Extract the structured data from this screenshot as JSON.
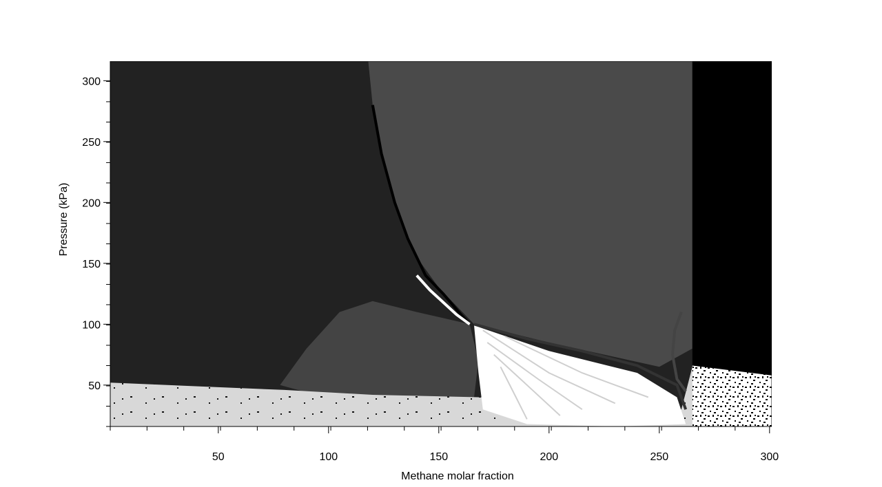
{
  "chart_data": {
    "type": "heatmap",
    "title": "",
    "xlabel": "Methane molar fraction",
    "ylabel": "Pressure (kPa)",
    "xlim": [
      1,
      301
    ],
    "ylim": [
      16,
      316
    ],
    "x_ticks": [
      50,
      100,
      150,
      200,
      250,
      300
    ],
    "y_ticks": [
      50,
      100,
      150,
      200,
      250,
      300
    ],
    "x_minor_step": 16.67,
    "y_minor_step": 16.67,
    "grid": false,
    "legend": "none",
    "palette": {
      "darkest": "#000000",
      "very_dark": "#222222",
      "mid_dark": "#3d3d3d",
      "mid": "#4a4a4a",
      "light": "#d8d8d8",
      "white": "#ffffff"
    },
    "regions": [
      {
        "name": "left-dark-region",
        "color": "#222222",
        "polygon": [
          [
            1,
            316
          ],
          [
            118,
            316
          ],
          [
            120,
            280
          ],
          [
            124,
            240
          ],
          [
            130,
            200
          ],
          [
            138,
            160
          ],
          [
            150,
            130
          ],
          [
            164,
            100
          ],
          [
            140,
            110
          ],
          [
            120,
            119
          ],
          [
            105,
            110
          ],
          [
            90,
            80
          ],
          [
            78,
            50
          ],
          [
            1,
            50
          ]
        ]
      },
      {
        "name": "upper-mid-region",
        "color": "#4a4a4a",
        "polygon": [
          [
            118,
            316
          ],
          [
            265,
            316
          ],
          [
            265,
            80
          ],
          [
            250,
            65
          ],
          [
            200,
            85
          ],
          [
            166,
            100
          ],
          [
            150,
            130
          ],
          [
            138,
            160
          ],
          [
            130,
            200
          ],
          [
            124,
            240
          ],
          [
            120,
            280
          ]
        ]
      },
      {
        "name": "lower-mid-dome",
        "color": "#444444",
        "polygon": [
          [
            78,
            50
          ],
          [
            90,
            80
          ],
          [
            105,
            110
          ],
          [
            120,
            119
          ],
          [
            140,
            110
          ],
          [
            164,
            100
          ],
          [
            168,
            70
          ],
          [
            166,
            40
          ],
          [
            120,
            40
          ],
          [
            90,
            44
          ]
        ]
      },
      {
        "name": "right-black-region",
        "color": "#000000",
        "polygon": [
          [
            265,
            316
          ],
          [
            301,
            316
          ],
          [
            301,
            57
          ],
          [
            265,
            65
          ]
        ]
      },
      {
        "name": "bottom-light-band",
        "color": "#d8d8d8",
        "polygon": [
          [
            1,
            16
          ],
          [
            301,
            16
          ],
          [
            301,
            57
          ],
          [
            265,
            65
          ],
          [
            260,
            30
          ],
          [
            240,
            40
          ],
          [
            168,
            40
          ],
          [
            120,
            42
          ],
          [
            80,
            46
          ],
          [
            1,
            52
          ]
        ]
      },
      {
        "name": "white-fan-region",
        "color": "#ffffff",
        "polygon": [
          [
            166,
            99
          ],
          [
            200,
            78
          ],
          [
            240,
            60
          ],
          [
            258,
            40
          ],
          [
            262,
            18
          ],
          [
            230,
            16
          ],
          [
            190,
            18
          ],
          [
            170,
            30
          ],
          [
            168,
            60
          ]
        ]
      },
      {
        "name": "right-noise-region",
        "color": "#ffffff",
        "polygon": [
          [
            265,
            66
          ],
          [
            301,
            58
          ],
          [
            301,
            16
          ],
          [
            265,
            16
          ]
        ]
      }
    ],
    "boundary_curves": [
      {
        "name": "phase-boundary-black",
        "color": "#000000",
        "points": [
          [
            120,
            280
          ],
          [
            124,
            240
          ],
          [
            130,
            200
          ],
          [
            136,
            170
          ],
          [
            144,
            140
          ],
          [
            152,
            125
          ],
          [
            160,
            108
          ],
          [
            164,
            100
          ]
        ]
      },
      {
        "name": "phase-boundary-white",
        "color": "#ffffff",
        "points": [
          [
            140,
            140
          ],
          [
            146,
            128
          ],
          [
            152,
            118
          ],
          [
            158,
            108
          ],
          [
            164,
            100
          ]
        ]
      },
      {
        "name": "lower-boundary-dark",
        "color": "#333333",
        "points": [
          [
            166,
            100
          ],
          [
            190,
            88
          ],
          [
            215,
            78
          ],
          [
            240,
            66
          ],
          [
            258,
            50
          ],
          [
            262,
            30
          ]
        ]
      },
      {
        "name": "lobe-right",
        "color": "#444444",
        "points": [
          [
            260,
            110
          ],
          [
            257,
            95
          ],
          [
            256,
            75
          ],
          [
            258,
            55
          ],
          [
            262,
            45
          ]
        ]
      }
    ]
  }
}
